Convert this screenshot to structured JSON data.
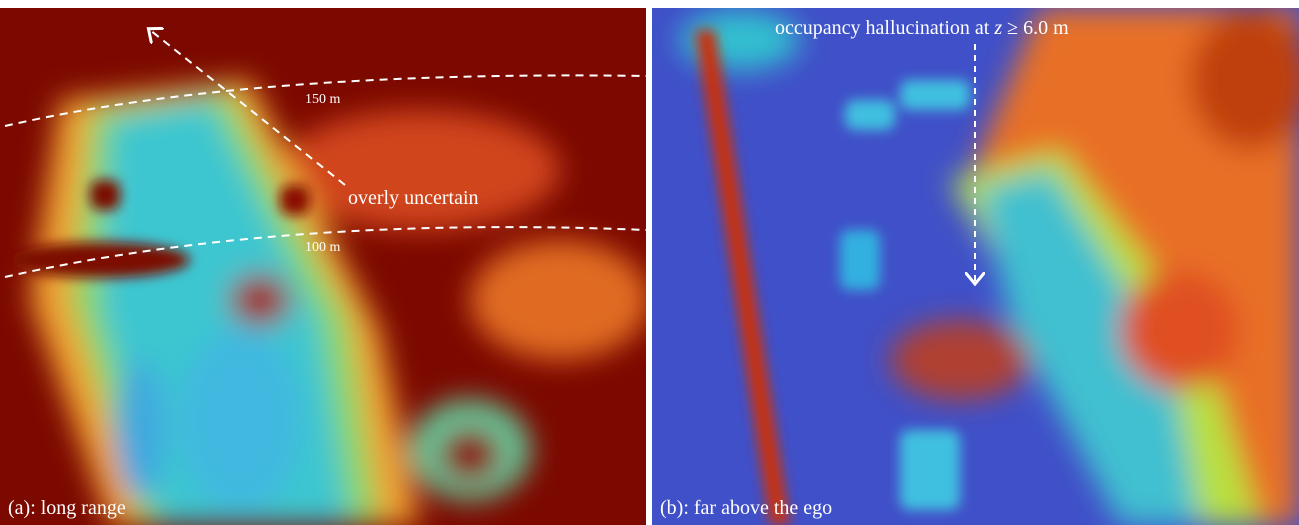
{
  "panels": [
    {
      "caption": "(a): long range",
      "range_labels": [
        "150 m",
        "100 m"
      ],
      "annotation": "overly uncertain"
    },
    {
      "caption": "(b): far above the ego",
      "annotation": {
        "text": "occupancy hallucination at",
        "variable": "z",
        "rest": "≥ 6.0 m"
      }
    }
  ]
}
